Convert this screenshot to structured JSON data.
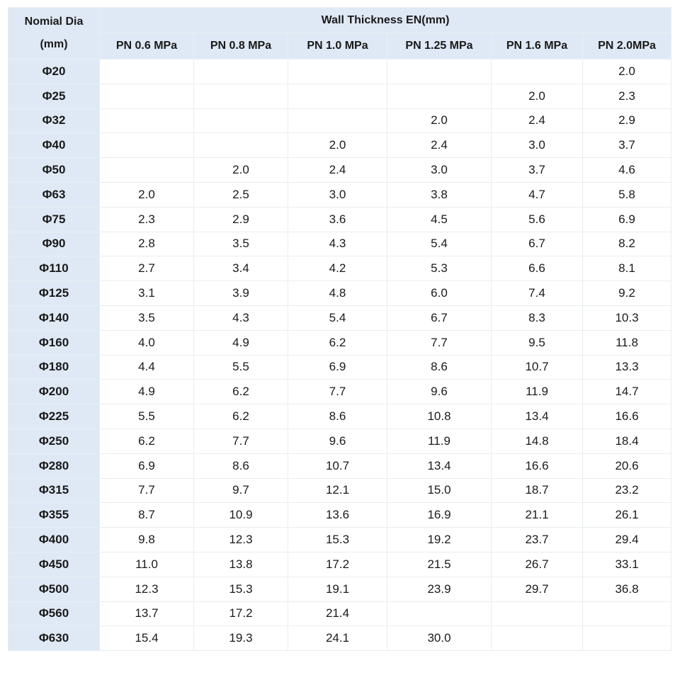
{
  "table": {
    "dia_header": [
      "Nomial Dia",
      "(mm)"
    ],
    "group_header": "Wall Thickness EN(mm)",
    "pressure_headers": [
      "PN 0.6 MPa",
      "PN 0.8 MPa",
      "PN 1.0 MPa",
      "PN 1.25 MPa",
      "PN 1.6 MPa",
      "PN 2.0MPa"
    ],
    "rows": [
      {
        "dia": "Φ20",
        "values": [
          "",
          "",
          "",
          "",
          "",
          "2.0"
        ]
      },
      {
        "dia": "Φ25",
        "values": [
          "",
          "",
          "",
          "",
          "2.0",
          "2.3"
        ]
      },
      {
        "dia": "Φ32",
        "values": [
          "",
          "",
          "",
          "2.0",
          "2.4",
          "2.9"
        ]
      },
      {
        "dia": "Φ40",
        "values": [
          "",
          "",
          "2.0",
          "2.4",
          "3.0",
          "3.7"
        ]
      },
      {
        "dia": "Φ50",
        "values": [
          "",
          "2.0",
          "2.4",
          "3.0",
          "3.7",
          "4.6"
        ]
      },
      {
        "dia": "Φ63",
        "values": [
          "2.0",
          "2.5",
          "3.0",
          "3.8",
          "4.7",
          "5.8"
        ]
      },
      {
        "dia": "Φ75",
        "values": [
          "2.3",
          "2.9",
          "3.6",
          "4.5",
          "5.6",
          "6.9"
        ]
      },
      {
        "dia": "Φ90",
        "values": [
          "2.8",
          "3.5",
          "4.3",
          "5.4",
          "6.7",
          "8.2"
        ]
      },
      {
        "dia": "Φ110",
        "values": [
          "2.7",
          "3.4",
          "4.2",
          "5.3",
          "6.6",
          "8.1"
        ]
      },
      {
        "dia": "Φ125",
        "values": [
          "3.1",
          "3.9",
          "4.8",
          "6.0",
          "7.4",
          "9.2"
        ]
      },
      {
        "dia": "Φ140",
        "values": [
          "3.5",
          "4.3",
          "5.4",
          "6.7",
          "8.3",
          "10.3"
        ]
      },
      {
        "dia": "Φ160",
        "values": [
          "4.0",
          "4.9",
          "6.2",
          "7.7",
          "9.5",
          "11.8"
        ]
      },
      {
        "dia": "Φ180",
        "values": [
          "4.4",
          "5.5",
          "6.9",
          "8.6",
          "10.7",
          "13.3"
        ]
      },
      {
        "dia": "Φ200",
        "values": [
          "4.9",
          "6.2",
          "7.7",
          "9.6",
          "11.9",
          "14.7"
        ]
      },
      {
        "dia": "Φ225",
        "values": [
          "5.5",
          "6.2",
          "8.6",
          "10.8",
          "13.4",
          "16.6"
        ]
      },
      {
        "dia": "Φ250",
        "values": [
          "6.2",
          "7.7",
          "9.6",
          "11.9",
          "14.8",
          "18.4"
        ]
      },
      {
        "dia": "Φ280",
        "values": [
          "6.9",
          "8.6",
          "10.7",
          "13.4",
          "16.6",
          "20.6"
        ]
      },
      {
        "dia": "Φ315",
        "values": [
          "7.7",
          "9.7",
          "12.1",
          "15.0",
          "18.7",
          "23.2"
        ]
      },
      {
        "dia": "Φ355",
        "values": [
          "8.7",
          "10.9",
          "13.6",
          "16.9",
          "21.1",
          "26.1"
        ]
      },
      {
        "dia": "Φ400",
        "values": [
          "9.8",
          "12.3",
          "15.3",
          "19.2",
          "23.7",
          "29.4"
        ]
      },
      {
        "dia": "Φ450",
        "values": [
          "11.0",
          "13.8",
          "17.2",
          "21.5",
          "26.7",
          "33.1"
        ]
      },
      {
        "dia": "Φ500",
        "values": [
          "12.3",
          "15.3",
          "19.1",
          "23.9",
          "29.7",
          "36.8"
        ]
      },
      {
        "dia": "Φ560",
        "values": [
          "13.7",
          "17.2",
          "21.4",
          "",
          "",
          ""
        ]
      },
      {
        "dia": "Φ630",
        "values": [
          "15.4",
          "19.3",
          "24.1",
          "30.0",
          "",
          ""
        ]
      }
    ]
  }
}
